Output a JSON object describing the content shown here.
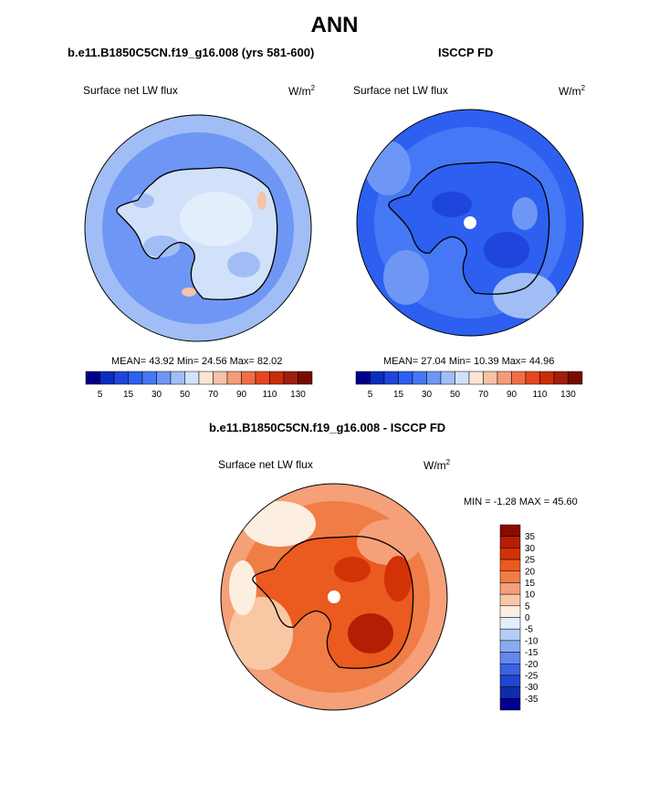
{
  "title": "ANN",
  "panels": [
    {
      "id": "model",
      "case_title": "b.e11.B1850C5CN.f19_g16.008 (yrs 581-600)",
      "left_label": "Surface net LW flux",
      "units": "W/m",
      "units_sup": "2",
      "stats": "MEAN=  43.92  Min=  24.56  Max=  82.02",
      "colorbar_ticks": [
        "5",
        "15",
        "30",
        "50",
        "70",
        "90",
        "110",
        "130"
      ]
    },
    {
      "id": "obs",
      "case_title": "ISCCP FD",
      "left_label": "Surface net LW flux",
      "units": "W/m",
      "units_sup": "2",
      "stats": "MEAN=  27.04  Min=  10.39  Max=  44.96",
      "colorbar_ticks": [
        "5",
        "15",
        "30",
        "50",
        "70",
        "90",
        "110",
        "130"
      ]
    },
    {
      "id": "diff",
      "case_title": "b.e11.B1850C5CN.f19_g16.008 - ISCCP FD",
      "left_label": "Surface net LW flux",
      "units": "W/m",
      "units_sup": "2",
      "stats": "MIN =  -1.28 MAX =  45.60",
      "colorbar_ticks": [
        "35",
        "30",
        "25",
        "20",
        "15",
        "10",
        "5",
        "0",
        "-5",
        "-10",
        "-15",
        "-20",
        "-25",
        "-30",
        "-35"
      ]
    }
  ],
  "colors": {
    "seq_palette": [
      "#00008b",
      "#0a2dbe",
      "#1e46dc",
      "#2d5ff0",
      "#4678f5",
      "#6e96f5",
      "#a0bef5",
      "#d2e1fa",
      "#fae6d2",
      "#f5c3a5",
      "#f59b78",
      "#f06e46",
      "#e6461e",
      "#c82d0a",
      "#a01e0a",
      "#780a00"
    ],
    "diff_palette": [
      "#8b0a00",
      "#b41e05",
      "#d23205",
      "#eb5a1e",
      "#f07d46",
      "#f5a078",
      "#f8c8a5",
      "#fdeee2",
      "#e3eefc",
      "#b4cdf5",
      "#8caaf0",
      "#6487eb",
      "#3c64e1",
      "#1e46d2",
      "#0f2daa",
      "#00008b"
    ],
    "model_field_main": "#a0bef5",
    "obs_field_main": "#2d5ff0",
    "diff_field_main": "#f5a078"
  },
  "chart_data": [
    {
      "type": "heatmap",
      "title": "Surface net LW flux",
      "projection": "south polar stereographic",
      "units": "W/m2",
      "mean": 43.92,
      "min": 24.56,
      "max": 82.02,
      "levels": [
        5,
        10,
        15,
        20,
        30,
        40,
        50,
        60,
        70,
        80,
        90,
        100,
        110,
        120,
        130
      ]
    },
    {
      "type": "heatmap",
      "title": "Surface net LW flux",
      "projection": "south polar stereographic",
      "units": "W/m2",
      "mean": 27.04,
      "min": 10.39,
      "max": 44.96,
      "levels": [
        5,
        10,
        15,
        20,
        30,
        40,
        50,
        60,
        70,
        80,
        90,
        100,
        110,
        120,
        130
      ]
    },
    {
      "type": "heatmap",
      "title": "Surface net LW flux",
      "projection": "south polar stereographic",
      "units": "W/m2",
      "min": -1.28,
      "max": 45.6,
      "levels": [
        35,
        30,
        25,
        20,
        15,
        10,
        5,
        0,
        -5,
        -10,
        -15,
        -20,
        -25,
        -30,
        -35
      ]
    }
  ]
}
